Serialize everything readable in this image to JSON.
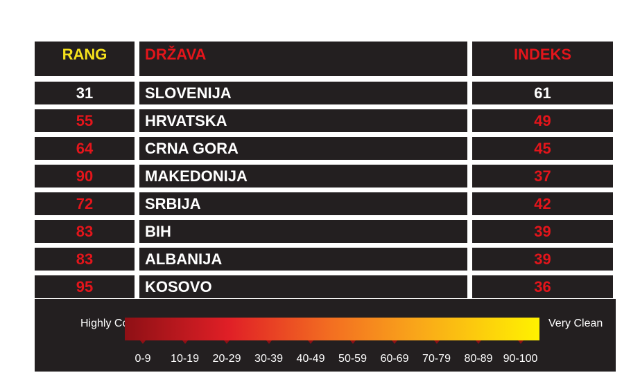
{
  "table": {
    "header": [
      "RANG",
      "DRŽAVA",
      "INDEKS"
    ],
    "header_colors": [
      "#f5e11c",
      "#e3151b",
      "#e3151b"
    ],
    "rows": [
      {
        "rank": 31,
        "country": "SLOVENIJA",
        "index": 61,
        "color": "#ffffff"
      },
      {
        "rank": 55,
        "country": "HRVATSKA",
        "index": 49,
        "color": "#e3151b"
      },
      {
        "rank": 64,
        "country": "CRNA GORA",
        "index": 45,
        "color": "#e3151b"
      },
      {
        "rank": 90,
        "country": "MAKEDONIJA",
        "index": 37,
        "color": "#e3151b"
      },
      {
        "rank": 72,
        "country": "SRBIJA",
        "index": 42,
        "color": "#e3151b"
      },
      {
        "rank": 83,
        "country": "BIH",
        "index": 39,
        "color": "#e3151b"
      },
      {
        "rank": 83,
        "country": "ALBANIJA",
        "index": 39,
        "color": "#e3151b"
      },
      {
        "rank": 95,
        "country": "KOSOVO",
        "index": 36,
        "color": "#e3151b"
      }
    ]
  },
  "legend": {
    "left_label": "Highly Corrupt",
    "right_label": "Very Clean",
    "ranges": [
      "0-9",
      "10-19",
      "20-29",
      "30-39",
      "40-49",
      "50-59",
      "60-69",
      "70-79",
      "80-89",
      "90-100"
    ]
  }
}
